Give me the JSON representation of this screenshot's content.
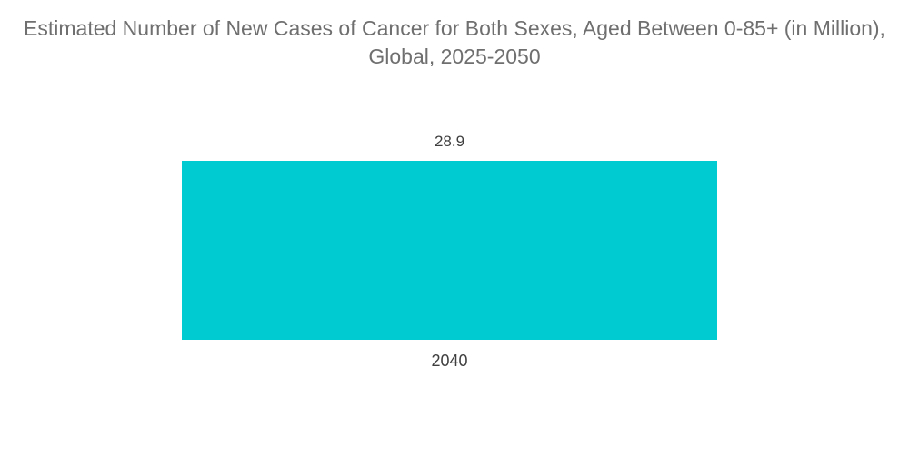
{
  "chart_data": {
    "type": "bar",
    "title": "Estimated Number of New Cases of Cancer for Both Sexes, Aged Between 0-85+ (in Million), Global, 2025-2050",
    "categories": [
      "2040"
    ],
    "values": [
      28.9
    ],
    "xlabel": "",
    "ylabel": "",
    "ylim": [
      0,
      28.9
    ],
    "grid": false,
    "legend": false,
    "colors": {
      "bar": "#00CBD1",
      "title_text": "#6F6F6F",
      "label_text": "#3F3F3F",
      "background": "#FFFFFF"
    }
  }
}
